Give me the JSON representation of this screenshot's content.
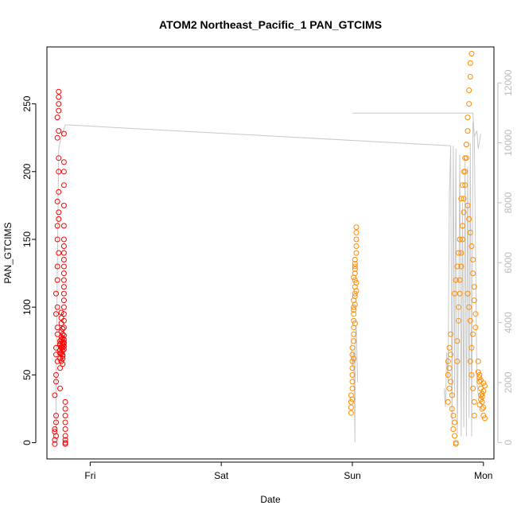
{
  "chart_data": {
    "type": "scatter",
    "title": "ATOM2 Northeast_Pacific_1 PAN_GTCIMS",
    "xlabel": "Date",
    "ylabel": "PAN_GTCIMS",
    "x_ticks": [
      "Fri",
      "Sat",
      "Sun",
      "Mon"
    ],
    "y_ticks": [
      0,
      50,
      100,
      150,
      200,
      250
    ],
    "y_range": [
      -12,
      292
    ],
    "y2_ticks": [
      0,
      2000,
      4000,
      6000,
      8000,
      10000,
      12000
    ],
    "y2_range": [
      -550,
      13200
    ],
    "x_range_days": [
      -0.33,
      3.08
    ],
    "colors": {
      "series_1": "#ff0000",
      "series_2": "#ff8c00",
      "altitude_line": "#c8c8c8"
    },
    "series": [
      {
        "color": "red",
        "x_days": [
          -0.27,
          -0.19
        ],
        "points": [
          [
            -0.27,
            2
          ],
          [
            -0.27,
            8
          ],
          [
            -0.26,
            15
          ],
          [
            -0.27,
            -1
          ],
          [
            -0.26,
            5
          ],
          [
            -0.27,
            10
          ],
          [
            -0.26,
            20
          ],
          [
            -0.27,
            35
          ],
          [
            -0.26,
            45
          ],
          [
            -0.26,
            50
          ],
          [
            -0.25,
            60
          ],
          [
            -0.26,
            65
          ],
          [
            -0.26,
            70
          ],
          [
            -0.25,
            80
          ],
          [
            -0.25,
            85
          ],
          [
            -0.26,
            95
          ],
          [
            -0.25,
            100
          ],
          [
            -0.26,
            110
          ],
          [
            -0.25,
            120
          ],
          [
            -0.25,
            130
          ],
          [
            -0.24,
            140
          ],
          [
            -0.25,
            150
          ],
          [
            -0.25,
            160
          ],
          [
            -0.24,
            165
          ],
          [
            -0.24,
            170
          ],
          [
            -0.25,
            178
          ],
          [
            -0.24,
            185
          ],
          [
            -0.24,
            200
          ],
          [
            -0.24,
            210
          ],
          [
            -0.25,
            225
          ],
          [
            -0.24,
            230
          ],
          [
            -0.25,
            240
          ],
          [
            -0.24,
            245
          ],
          [
            -0.24,
            250
          ],
          [
            -0.24,
            255
          ],
          [
            -0.24,
            259
          ],
          [
            -0.23,
            40
          ],
          [
            -0.23,
            55
          ],
          [
            -0.23,
            62
          ],
          [
            -0.23,
            68
          ],
          [
            -0.23,
            72
          ],
          [
            -0.23,
            75
          ],
          [
            -0.22,
            78
          ],
          [
            -0.22,
            82
          ],
          [
            -0.22,
            88
          ],
          [
            -0.22,
            92
          ],
          [
            -0.22,
            96
          ],
          [
            -0.22,
            60
          ],
          [
            -0.22,
            66
          ],
          [
            -0.21,
            70
          ],
          [
            -0.21,
            74
          ],
          [
            -0.21,
            77
          ],
          [
            -0.21,
            80
          ],
          [
            -0.21,
            84
          ],
          [
            -0.21,
            58
          ],
          [
            -0.21,
            62
          ],
          [
            -0.21,
            64
          ],
          [
            -0.2,
            71
          ],
          [
            -0.2,
            73
          ],
          [
            -0.2,
            76
          ],
          [
            -0.2,
            79
          ],
          [
            -0.2,
            85
          ],
          [
            -0.2,
            90
          ],
          [
            -0.2,
            95
          ],
          [
            -0.2,
            100
          ],
          [
            -0.2,
            105
          ],
          [
            -0.2,
            110
          ],
          [
            -0.2,
            115
          ],
          [
            -0.2,
            120
          ],
          [
            -0.2,
            125
          ],
          [
            -0.2,
            130
          ],
          [
            -0.2,
            135
          ],
          [
            -0.2,
            140
          ],
          [
            -0.2,
            145
          ],
          [
            -0.2,
            150
          ],
          [
            -0.2,
            160
          ],
          [
            -0.2,
            175
          ],
          [
            -0.2,
            190
          ],
          [
            -0.2,
            200
          ],
          [
            -0.2,
            207
          ],
          [
            -0.2,
            228
          ],
          [
            -0.19,
            30
          ],
          [
            -0.19,
            25
          ],
          [
            -0.19,
            20
          ],
          [
            -0.19,
            15
          ],
          [
            -0.19,
            10
          ],
          [
            -0.19,
            5
          ],
          [
            -0.19,
            0
          ],
          [
            -0.19,
            -1
          ],
          [
            -0.19,
            2
          ],
          [
            -0.21,
            68
          ],
          [
            -0.22,
            70
          ],
          [
            -0.23,
            66
          ],
          [
            -0.21,
            72
          ],
          [
            -0.2,
            74
          ],
          [
            -0.22,
            76
          ],
          [
            -0.21,
            65
          ],
          [
            -0.2,
            69
          ],
          [
            -0.23,
            73
          ],
          [
            -0.22,
            71
          ]
        ]
      },
      {
        "color": "orange",
        "x_days": [
          1.99,
          3.01
        ],
        "points": [
          [
            1.99,
            22
          ],
          [
            1.99,
            26
          ],
          [
            1.99,
            30
          ],
          [
            1.99,
            35
          ],
          [
            2.0,
            40
          ],
          [
            2.0,
            45
          ],
          [
            2.0,
            50
          ],
          [
            2.0,
            55
          ],
          [
            2.0,
            60
          ],
          [
            2.0,
            65
          ],
          [
            2.0,
            70
          ],
          [
            2.01,
            75
          ],
          [
            2.01,
            80
          ],
          [
            2.01,
            85
          ],
          [
            2.01,
            90
          ],
          [
            2.01,
            95
          ],
          [
            2.01,
            100
          ],
          [
            2.01,
            105
          ],
          [
            2.02,
            110
          ],
          [
            2.02,
            115
          ],
          [
            2.02,
            120
          ],
          [
            2.02,
            125
          ],
          [
            2.02,
            130
          ],
          [
            2.02,
            135
          ],
          [
            2.03,
            140
          ],
          [
            2.03,
            145
          ],
          [
            2.03,
            150
          ],
          [
            2.03,
            155
          ],
          [
            2.03,
            159
          ],
          [
            2.02,
            128
          ],
          [
            2.03,
            118
          ],
          [
            2.02,
            108
          ],
          [
            2.01,
            98
          ],
          [
            2.02,
            88
          ],
          [
            2.03,
            112
          ],
          [
            2.01,
            122
          ],
          [
            2.02,
            132
          ],
          [
            2.0,
            32
          ],
          [
            2.01,
            62
          ],
          [
            2.02,
            102
          ],
          [
            2.73,
            50
          ],
          [
            2.73,
            60
          ],
          [
            2.73,
            30
          ],
          [
            2.74,
            40
          ],
          [
            2.74,
            55
          ],
          [
            2.74,
            70
          ],
          [
            2.75,
            80
          ],
          [
            2.75,
            65
          ],
          [
            2.75,
            45
          ],
          [
            2.76,
            35
          ],
          [
            2.76,
            25
          ],
          [
            2.77,
            20
          ],
          [
            2.77,
            10
          ],
          [
            2.78,
            5
          ],
          [
            2.78,
            15
          ],
          [
            2.79,
            0
          ],
          [
            2.79,
            -1
          ],
          [
            2.8,
            60
          ],
          [
            2.8,
            75
          ],
          [
            2.81,
            90
          ],
          [
            2.81,
            100
          ],
          [
            2.82,
            110
          ],
          [
            2.82,
            120
          ],
          [
            2.83,
            130
          ],
          [
            2.83,
            140
          ],
          [
            2.84,
            150
          ],
          [
            2.84,
            160
          ],
          [
            2.85,
            170
          ],
          [
            2.85,
            180
          ],
          [
            2.86,
            190
          ],
          [
            2.86,
            200
          ],
          [
            2.87,
            210
          ],
          [
            2.87,
            220
          ],
          [
            2.88,
            230
          ],
          [
            2.88,
            240
          ],
          [
            2.89,
            250
          ],
          [
            2.89,
            260
          ],
          [
            2.9,
            270
          ],
          [
            2.9,
            280
          ],
          [
            2.91,
            287
          ],
          [
            2.88,
            175
          ],
          [
            2.89,
            165
          ],
          [
            2.9,
            155
          ],
          [
            2.91,
            145
          ],
          [
            2.92,
            135
          ],
          [
            2.92,
            125
          ],
          [
            2.93,
            115
          ],
          [
            2.93,
            105
          ],
          [
            2.94,
            95
          ],
          [
            2.94,
            85
          ],
          [
            2.9,
            60
          ],
          [
            2.91,
            50
          ],
          [
            2.92,
            40
          ],
          [
            2.93,
            30
          ],
          [
            2.93,
            20
          ],
          [
            2.91,
            70
          ],
          [
            2.92,
            80
          ],
          [
            2.9,
            90
          ],
          [
            2.89,
            100
          ],
          [
            2.88,
            110
          ],
          [
            2.85,
            200
          ],
          [
            2.86,
            210
          ],
          [
            2.87,
            220
          ],
          [
            2.84,
            190
          ],
          [
            2.83,
            180
          ],
          [
            2.82,
            150
          ],
          [
            2.81,
            140
          ],
          [
            2.8,
            130
          ],
          [
            2.79,
            120
          ],
          [
            2.78,
            110
          ],
          [
            2.96,
            60
          ],
          [
            2.97,
            50
          ],
          [
            2.97,
            45
          ],
          [
            2.98,
            40
          ],
          [
            2.98,
            35
          ],
          [
            2.99,
            30
          ],
          [
            2.99,
            25
          ],
          [
            3.0,
            20
          ],
          [
            3.0,
            38
          ],
          [
            3.01,
            42
          ],
          [
            2.97,
            28
          ],
          [
            2.98,
            32
          ],
          [
            2.99,
            36
          ],
          [
            3.0,
            44
          ],
          [
            2.96,
            52
          ],
          [
            2.97,
            48
          ],
          [
            2.98,
            46
          ],
          [
            2.99,
            34
          ],
          [
            3.0,
            26
          ],
          [
            3.01,
            18
          ]
        ]
      }
    ],
    "altitude_line": [
      [
        -0.27,
        0.0
      ],
      [
        -0.26,
        400
      ],
      [
        -0.26,
        2000
      ],
      [
        -0.25,
        6000
      ],
      [
        -0.24,
        9800
      ],
      [
        -0.22,
        10200
      ],
      [
        -0.19,
        10600
      ],
      [
        1.99,
        3500
      ],
      [
        2.0,
        2500
      ],
      [
        2.01,
        3000
      ],
      [
        2.02,
        0
      ],
      [
        2.02,
        3500
      ],
      [
        2.03,
        3800
      ],
      [
        2.04,
        2000
      ],
      [
        2.0,
        10990
      ],
      [
        2.05,
        10990
      ],
      [
        2.7,
        10990
      ],
      [
        2.92,
        10990
      ],
      [
        2.93,
        10200
      ],
      [
        2.95,
        10400
      ],
      [
        2.96,
        9800
      ],
      [
        2.98,
        10300
      ],
      [
        2.7,
        1800
      ],
      [
        2.71,
        1200
      ],
      [
        2.72,
        3000
      ],
      [
        2.73,
        2000
      ],
      [
        2.74,
        8300
      ],
      [
        2.75,
        9900
      ],
      [
        2.76,
        500
      ],
      [
        2.77,
        9900
      ],
      [
        2.78,
        1500
      ],
      [
        2.79,
        9800
      ],
      [
        2.8,
        300
      ],
      [
        2.81,
        3800
      ],
      [
        2.82,
        9600
      ],
      [
        2.83,
        200
      ],
      [
        2.84,
        8000
      ],
      [
        2.85,
        500
      ],
      [
        2.86,
        9500
      ],
      [
        2.87,
        200
      ],
      [
        2.88,
        9200
      ],
      [
        2.89,
        800
      ],
      [
        2.9,
        10000
      ],
      [
        2.91,
        200
      ],
      [
        2.92,
        10700
      ],
      [
        2.93,
        10300
      ],
      [
        2.95,
        2000
      ],
      [
        2.96,
        1600
      ]
    ]
  }
}
